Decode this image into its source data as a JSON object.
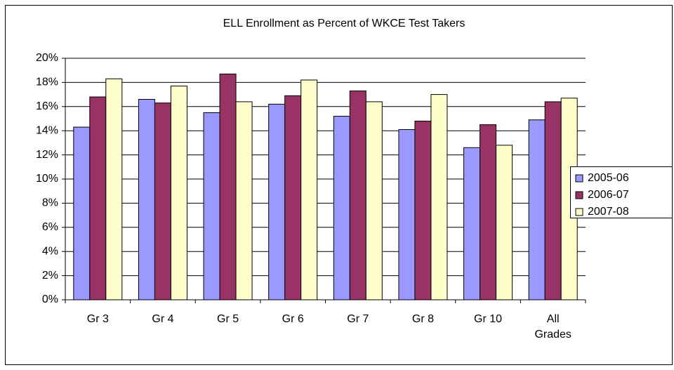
{
  "chart_data": {
    "type": "bar",
    "title": "ELL Enrollment as Percent of WKCE Test Takers",
    "categories": [
      "Gr 3",
      "Gr 4",
      "Gr 5",
      "Gr 6",
      "Gr 7",
      "Gr 8",
      "Gr 10",
      "All Grades"
    ],
    "series": [
      {
        "name": "2005-06",
        "color": "#9999ff",
        "values": [
          14.3,
          16.6,
          15.5,
          16.2,
          15.2,
          14.1,
          12.6,
          14.9
        ]
      },
      {
        "name": "2006-07",
        "color": "#993366",
        "values": [
          16.8,
          16.3,
          18.7,
          16.9,
          17.3,
          14.8,
          14.5,
          16.4
        ]
      },
      {
        "name": "2007-08",
        "color": "#ffffcc",
        "values": [
          18.3,
          17.7,
          16.4,
          18.2,
          16.4,
          17.0,
          12.8,
          16.7
        ]
      }
    ],
    "ylim": [
      0,
      20
    ],
    "yticks": [
      {
        "value": 0,
        "label": "0%"
      },
      {
        "value": 2,
        "label": "2%"
      },
      {
        "value": 4,
        "label": "4%"
      },
      {
        "value": 6,
        "label": "6%"
      },
      {
        "value": 8,
        "label": "8%"
      },
      {
        "value": 10,
        "label": "10%"
      },
      {
        "value": 12,
        "label": "12%"
      },
      {
        "value": 14,
        "label": "14%"
      },
      {
        "value": 16,
        "label": "16%"
      },
      {
        "value": 18,
        "label": "18%"
      },
      {
        "value": 20,
        "label": "20%"
      }
    ],
    "grid": true,
    "legend": "right"
  }
}
